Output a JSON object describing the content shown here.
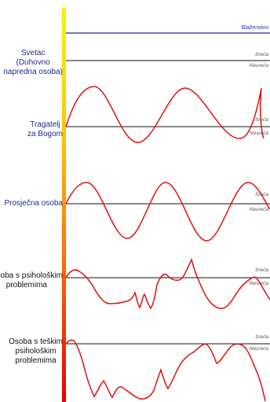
{
  "rows": [
    {
      "label_lines": [
        "Svetac",
        "(Duhovno",
        "napredna osoba)"
      ],
      "color": "#1f2b8f"
    },
    {
      "label_lines": [
        "Tragatelj",
        "za Bogom"
      ],
      "color": "#1f2b8f"
    },
    {
      "label_lines": [
        "Prosječna osoba"
      ],
      "color": "#1f2b8f"
    },
    {
      "label_lines": [
        "Osoba s psihološkim",
        "problemima"
      ],
      "color": "#111111"
    },
    {
      "label_lines": [
        "Osoba s teškim",
        "psihološkim",
        "problemima"
      ],
      "color": "#111111"
    }
  ],
  "tags": {
    "blazenstvo": "Blaženstvo",
    "sreca": "Sreća",
    "nesreca": "Nesreća"
  },
  "colors": {
    "gradient_top": "#ffe600",
    "gradient_bottom": "#e60000",
    "bliss_line": "#1f2b8f",
    "curve": "#dd1111",
    "baseline": "#111111"
  }
}
